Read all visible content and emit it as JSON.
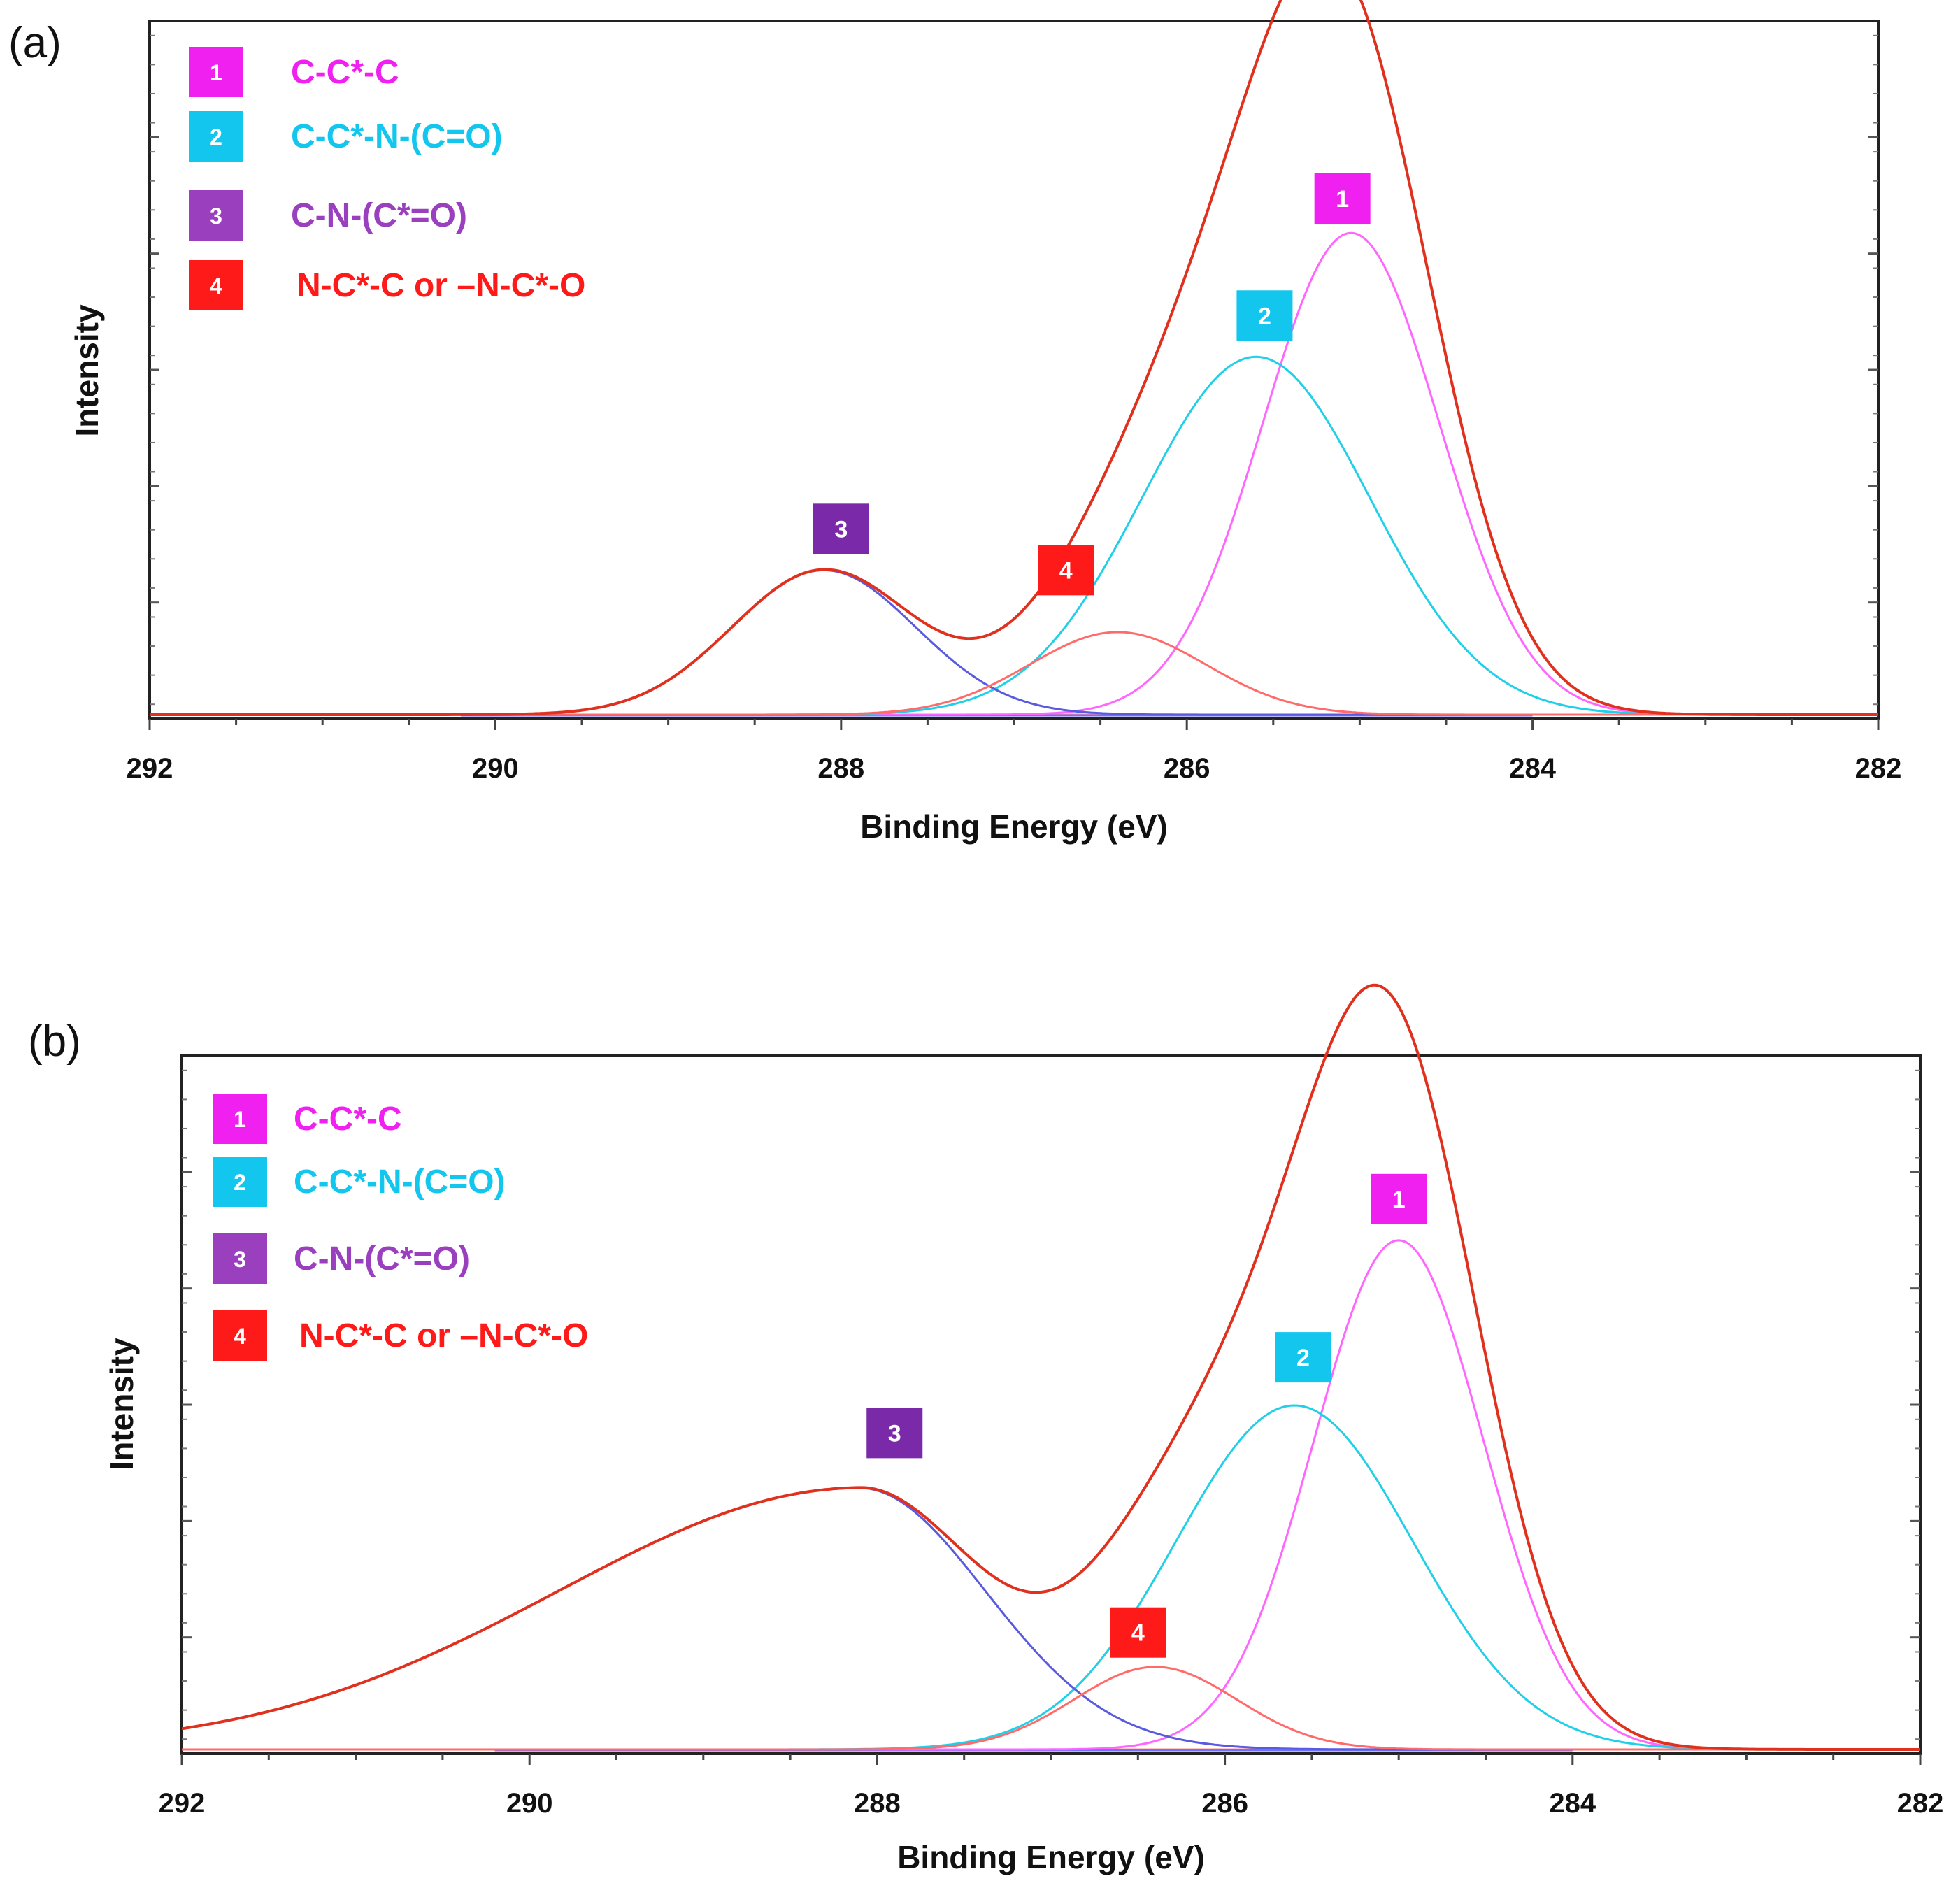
{
  "chart_data": [
    {
      "type": "line",
      "panel_label": "(a)",
      "xlabel": "Binding Energy (eV)",
      "ylabel": "Intensity",
      "xlim": [
        292,
        282
      ],
      "ylim": [
        0,
        100
      ],
      "x_ticks": [
        292,
        290,
        288,
        286,
        284,
        282
      ],
      "grid": false,
      "legend_position": "top-left",
      "legend": [
        {
          "id": "1",
          "label": "C-C*-C",
          "color": "#f020f0"
        },
        {
          "id": "2",
          "label": "C-C*-N-(C=O)",
          "color": "#12c6ee"
        },
        {
          "id": "3",
          "label": "C-N-(C*=O)",
          "color": "#9a3fbe"
        },
        {
          "id": "4",
          "label": "N-C*-C or –N-C*-O",
          "color": "#ff1a1a"
        }
      ],
      "series": [
        {
          "name": "1",
          "label": "C-C*-C",
          "center": 285.05,
          "height": 70,
          "fwhm": 1.2,
          "color": "#ff66ff"
        },
        {
          "name": "2",
          "label": "C-C*-N-(C=O)",
          "center": 285.6,
          "height": 52,
          "fwhm": 1.55,
          "color": "#20d0e8"
        },
        {
          "name": "3",
          "label": "C-N-(C*=O)",
          "center": 288.1,
          "height": 21,
          "fwhm": 1.25,
          "color": "#5a5ae0"
        },
        {
          "name": "4",
          "label": "N-C*-C or –N-C*-O",
          "center": 286.4,
          "height": 12,
          "fwhm": 1.2,
          "color": "#ff6a6a"
        }
      ],
      "envelope_color": "#e0301e",
      "markers": [
        {
          "label": "1",
          "x": 285.1,
          "y": 75,
          "color": "#f020f0"
        },
        {
          "label": "2",
          "x": 285.55,
          "y": 58,
          "color": "#12c6ee"
        },
        {
          "label": "3",
          "x": 288.0,
          "y": 27,
          "color": "#7a2aa8"
        },
        {
          "label": "4",
          "x": 286.7,
          "y": 21,
          "color": "#ff1a1a"
        }
      ]
    },
    {
      "type": "line",
      "panel_label": "(b)",
      "xlabel": "Binding Energy (eV)",
      "ylabel": "Intensity",
      "xlim": [
        292,
        282
      ],
      "ylim": [
        0,
        100
      ],
      "x_ticks": [
        292,
        290,
        288,
        286,
        284,
        282
      ],
      "grid": false,
      "legend_position": "top-left",
      "legend": [
        {
          "id": "1",
          "label": "C-C*-C",
          "color": "#f020f0"
        },
        {
          "id": "2",
          "label": "C-C*-N-(C=O)",
          "color": "#12c6ee"
        },
        {
          "id": "3",
          "label": "C-N-(C*=O)",
          "color": "#9a3fbe"
        },
        {
          "id": "4",
          "label": "N-C*-C or –N-C*-O",
          "color": "#ff1a1a"
        }
      ],
      "series": [
        {
          "name": "1",
          "label": "C-C*-C",
          "center": 285.0,
          "height": 74,
          "fwhm": 1.15,
          "color": "#ff66ff"
        },
        {
          "name": "2",
          "label": "C-C*-N-(C=O)",
          "center": 285.6,
          "height": 50,
          "fwhm": 1.6,
          "color": "#20d0e8"
        },
        {
          "name": "3",
          "label": "C-N-(C*=O)",
          "center": 288.1,
          "height": 38,
          "fwhm": 1.7,
          "tail_left": 2.4,
          "color": "#5a5ae0"
        },
        {
          "name": "4",
          "label": "N-C*-C or –N-C*-O",
          "center": 286.4,
          "height": 12,
          "fwhm": 1.1,
          "color": "#ff6a6a"
        }
      ],
      "envelope_color": "#e0301e",
      "markers": [
        {
          "label": "1",
          "x": 285.0,
          "y": 80,
          "color": "#f020f0"
        },
        {
          "label": "2",
          "x": 285.55,
          "y": 57,
          "color": "#12c6ee"
        },
        {
          "label": "3",
          "x": 287.9,
          "y": 46,
          "color": "#7a2aa8"
        },
        {
          "label": "4",
          "x": 286.5,
          "y": 17,
          "color": "#ff1a1a"
        }
      ]
    }
  ]
}
